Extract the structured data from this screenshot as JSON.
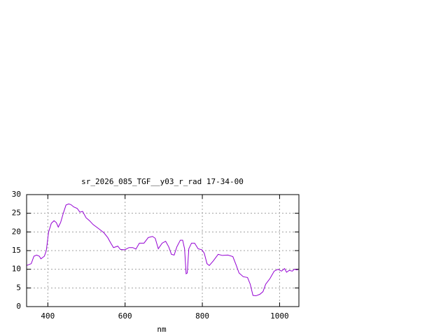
{
  "chart_data": {
    "type": "line",
    "title": "sr_2026_085_TGF__y03_r_rad 17-34-00",
    "x_label": "nm",
    "xlim": [
      345,
      1050
    ],
    "ylim": [
      0,
      30
    ],
    "xticks": [
      400,
      600,
      800,
      1000
    ],
    "yticks": [
      0,
      5,
      10,
      15,
      20,
      25,
      30
    ],
    "grid": true,
    "series": [
      {
        "color": "#9400d3",
        "x": [
          345,
          357,
          364,
          371,
          378,
          382,
          391,
          396,
          402,
          409,
          416,
          422,
          427,
          433,
          440,
          447,
          454,
          460,
          467,
          476,
          483,
          490,
          499,
          508,
          517,
          530,
          545,
          555,
          563,
          570,
          581,
          588,
          599,
          610,
          620,
          628,
          637,
          649,
          660,
          671,
          678,
          686,
          696,
          705,
          713,
          720,
          727,
          734,
          743,
          749,
          754,
          758,
          761,
          765,
          772,
          780,
          789,
          799,
          805,
          812,
          818,
          828,
          841,
          852,
          866,
          879,
          888,
          895,
          906,
          917,
          924,
          931,
          939,
          949,
          957,
          964,
          975,
          986,
          996,
          1005,
          1013,
          1018,
          1025,
          1033,
          1038,
          1047
        ],
        "values": [
          11,
          11.5,
          13.5,
          13.8,
          13.5,
          12.8,
          13.5,
          15,
          20,
          22.3,
          23,
          22.5,
          21.3,
          22.5,
          25,
          27.2,
          27.5,
          27.3,
          26.7,
          26.3,
          25.3,
          25.5,
          23.8,
          23,
          22,
          21,
          19.8,
          18.5,
          17,
          15.8,
          16.2,
          15.3,
          15.2,
          15.8,
          15.8,
          15.4,
          17,
          17,
          18.5,
          18.8,
          18.3,
          15.5,
          17,
          17.5,
          16,
          14,
          13.8,
          16,
          17.8,
          17.8,
          15.5,
          8.8,
          9,
          15.5,
          17,
          17,
          15.5,
          15.2,
          14.3,
          11.5,
          11,
          12.2,
          14,
          13.7,
          13.8,
          13.4,
          11,
          9,
          8,
          7.8,
          6,
          3,
          2.9,
          3.3,
          4,
          6,
          7.5,
          9.5,
          10,
          9.5,
          10.2,
          9.2,
          9.7,
          9.5,
          10,
          9.8
        ]
      }
    ]
  }
}
